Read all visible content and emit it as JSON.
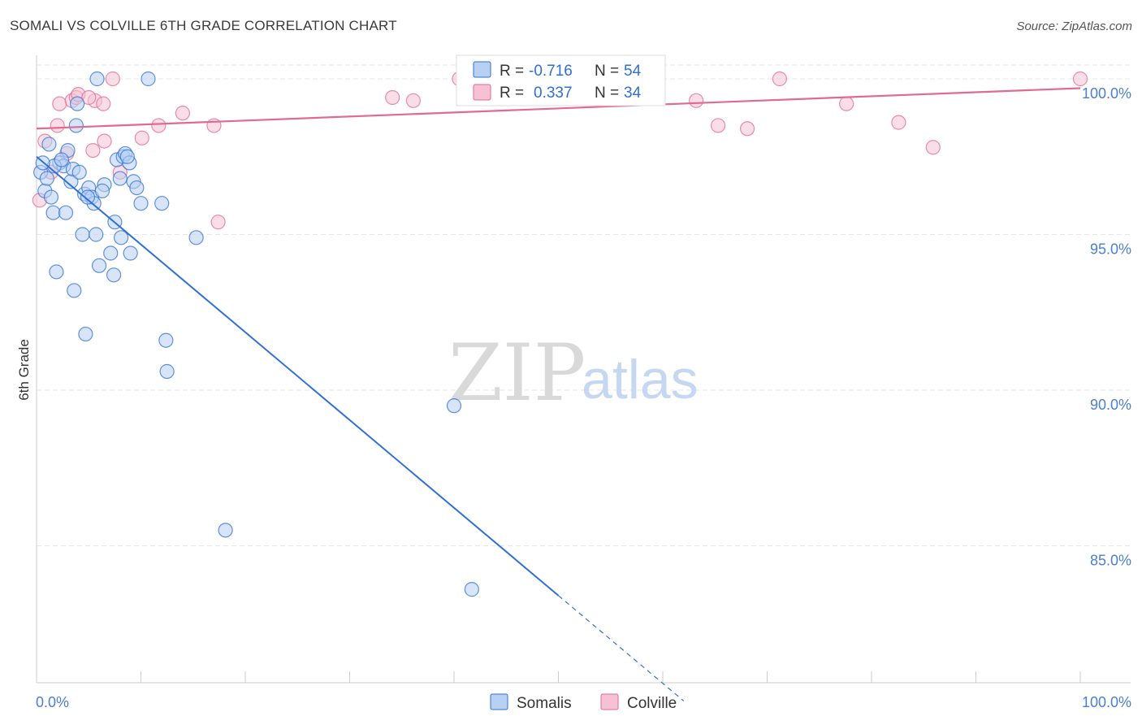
{
  "header": {
    "title": "SOMALI VS COLVILLE 6TH GRADE CORRELATION CHART",
    "source": "Source: ZipAtlas.com"
  },
  "watermark": {
    "zip": "ZIP",
    "atlas": "atlas"
  },
  "colors": {
    "somalis": "#2f6fd6",
    "somalis_fill": "#b8d0f2",
    "colville": "#e06a93",
    "colville_fill": "#f6c2d3",
    "tick": "#4a7fd1",
    "grid": "#e6e6e6"
  },
  "legend": {
    "rows": [
      {
        "r_label": "R =",
        "r_value": "-0.716",
        "n_label": "N =",
        "n_value": "54"
      },
      {
        "r_label": "R =",
        "r_value": "0.337",
        "n_label": "N =",
        "n_value": "34"
      }
    ]
  },
  "bottom_legend": [
    "Somalis",
    "Colville"
  ],
  "chart_data": {
    "type": "scatter",
    "title": "SOMALI VS COLVILLE 6TH GRADE CORRELATION CHART",
    "xlabel": "",
    "ylabel": "6th Grade",
    "xlim": [
      0,
      100
    ],
    "ylim": [
      80,
      100.5
    ],
    "y_ticks": [
      100,
      95,
      90,
      85
    ],
    "y_tick_labels": [
      "100.0%",
      "95.0%",
      "90.0%",
      "85.0%"
    ],
    "x_tick_labels": [
      "0.0%",
      "100.0%"
    ],
    "grid": true,
    "legend_position": "top-center",
    "series": [
      {
        "name": "Somalis",
        "r": -0.716,
        "n": 54,
        "trend": {
          "x0": 0,
          "y0": 97.5,
          "x1": 50,
          "y1": 83.4,
          "dashed_to_x": 62
        },
        "points": [
          [
            0.4,
            97.0
          ],
          [
            0.8,
            96.4
          ],
          [
            1.0,
            96.8
          ],
          [
            1.2,
            97.9
          ],
          [
            1.4,
            96.2
          ],
          [
            1.6,
            95.7
          ],
          [
            1.9,
            93.8
          ],
          [
            2.2,
            97.3
          ],
          [
            2.6,
            97.2
          ],
          [
            2.8,
            95.7
          ],
          [
            3.0,
            97.7
          ],
          [
            3.3,
            96.7
          ],
          [
            3.5,
            97.1
          ],
          [
            3.6,
            93.2
          ],
          [
            3.8,
            98.5
          ],
          [
            3.9,
            99.2
          ],
          [
            4.1,
            97.0
          ],
          [
            4.4,
            95.0
          ],
          [
            4.6,
            96.3
          ],
          [
            4.7,
            91.8
          ],
          [
            5.0,
            96.5
          ],
          [
            5.3,
            96.2
          ],
          [
            5.5,
            96.0
          ],
          [
            5.7,
            95.0
          ],
          [
            5.8,
            100.0
          ],
          [
            6.0,
            94.0
          ],
          [
            6.5,
            96.6
          ],
          [
            7.1,
            94.4
          ],
          [
            7.4,
            93.7
          ],
          [
            7.5,
            95.4
          ],
          [
            7.7,
            97.4
          ],
          [
            8.0,
            96.8
          ],
          [
            8.1,
            94.9
          ],
          [
            8.3,
            97.5
          ],
          [
            8.5,
            97.6
          ],
          [
            8.9,
            97.3
          ],
          [
            9.0,
            94.4
          ],
          [
            9.3,
            96.7
          ],
          [
            9.6,
            96.5
          ],
          [
            10.0,
            96.0
          ],
          [
            10.7,
            100.0
          ],
          [
            12.0,
            96.0
          ],
          [
            12.4,
            91.6
          ],
          [
            12.5,
            90.6
          ],
          [
            15.3,
            94.9
          ],
          [
            18.1,
            85.5
          ],
          [
            1.7,
            97.2
          ],
          [
            2.4,
            97.4
          ],
          [
            4.9,
            96.2
          ],
          [
            8.7,
            97.5
          ],
          [
            0.6,
            97.3
          ],
          [
            6.3,
            96.4
          ],
          [
            40.0,
            89.5
          ],
          [
            41.7,
            83.6
          ]
        ]
      },
      {
        "name": "Colville",
        "r": 0.337,
        "n": 34,
        "trend": {
          "x0": 0,
          "y0": 98.4,
          "x1": 100,
          "y1": 99.7
        },
        "points": [
          [
            0.3,
            96.1
          ],
          [
            0.8,
            98.0
          ],
          [
            1.4,
            97.0
          ],
          [
            2.0,
            98.5
          ],
          [
            2.2,
            99.2
          ],
          [
            3.4,
            99.3
          ],
          [
            3.8,
            99.4
          ],
          [
            4.0,
            99.5
          ],
          [
            5.4,
            97.7
          ],
          [
            5.6,
            99.3
          ],
          [
            6.4,
            99.2
          ],
          [
            6.5,
            98.0
          ],
          [
            7.3,
            100.0
          ],
          [
            8.0,
            97.0
          ],
          [
            10.1,
            98.1
          ],
          [
            11.7,
            98.5
          ],
          [
            14.0,
            98.9
          ],
          [
            17.0,
            98.5
          ],
          [
            17.4,
            95.4
          ],
          [
            34.1,
            99.4
          ],
          [
            36.1,
            99.3
          ],
          [
            40.5,
            100.0
          ],
          [
            46.4,
            100.0
          ],
          [
            53.2,
            100.0
          ],
          [
            63.2,
            99.3
          ],
          [
            65.3,
            98.5
          ],
          [
            68.1,
            98.4
          ],
          [
            71.2,
            100.0
          ],
          [
            77.6,
            99.2
          ],
          [
            82.6,
            98.6
          ],
          [
            85.9,
            97.8
          ],
          [
            100.0,
            100.0
          ],
          [
            5.0,
            99.4
          ],
          [
            2.9,
            97.6
          ]
        ]
      }
    ]
  }
}
